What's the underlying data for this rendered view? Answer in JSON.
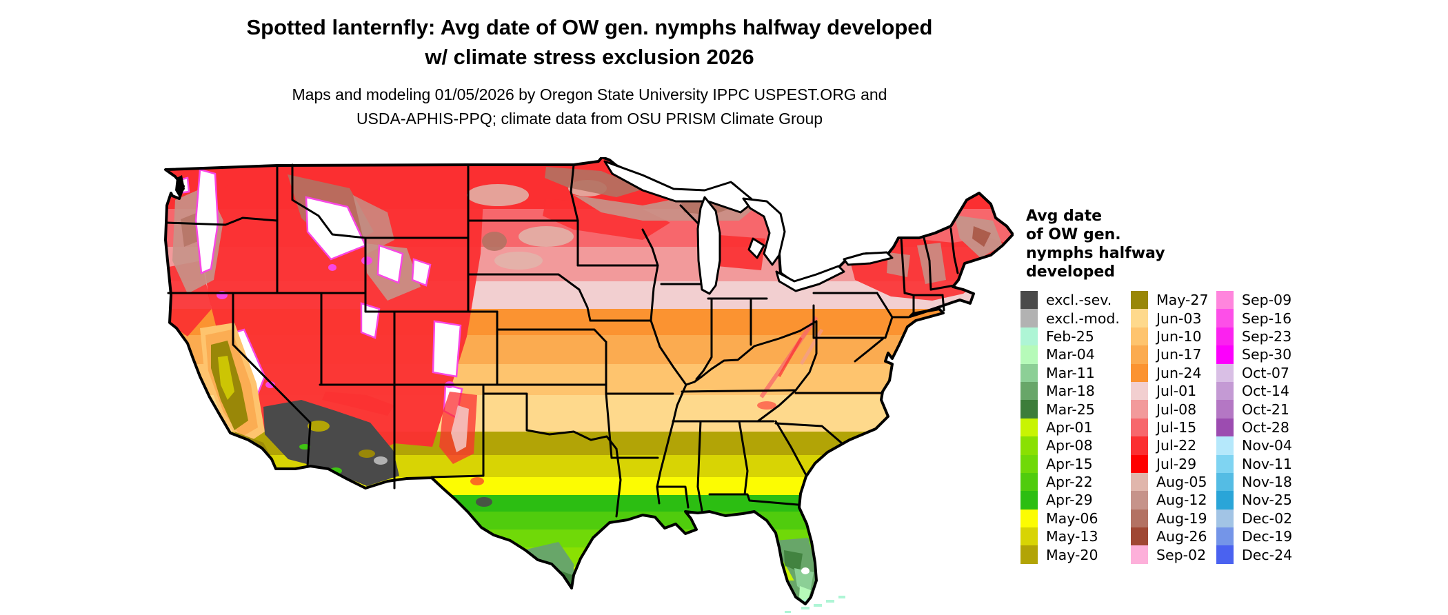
{
  "title": {
    "line1": "Spotted lanternfly: Avg date of OW gen. nymphs halfway developed",
    "line2": "w/ climate stress exclusion 2026"
  },
  "subtitle": {
    "line1": "Maps and modeling 01/05/2026 by Oregon State University IPPC USPEST.ORG and",
    "line2": "USDA-APHIS-PPQ; climate data from OSU PRISM Climate Group"
  },
  "legend": {
    "title_lines": [
      "Avg date",
      "of OW gen.",
      "nymphs halfway",
      "developed"
    ],
    "columns": [
      [
        {
          "label": "excl.-sev.",
          "color": "#4a4a4a"
        },
        {
          "label": "excl.-mod.",
          "color": "#b2b2b2"
        },
        {
          "label": "Feb-25",
          "color": "#aef5d5"
        },
        {
          "label": "Mar-04",
          "color": "#b6fab9"
        },
        {
          "label": "Mar-11",
          "color": "#8ccf96"
        },
        {
          "label": "Mar-18",
          "color": "#68a669"
        },
        {
          "label": "Mar-25",
          "color": "#3c7d3a"
        },
        {
          "label": "Apr-01",
          "color": "#c8f402"
        },
        {
          "label": "Apr-08",
          "color": "#8ae002"
        },
        {
          "label": "Apr-15",
          "color": "#70d908"
        },
        {
          "label": "Apr-22",
          "color": "#50cc0d"
        },
        {
          "label": "Apr-29",
          "color": "#2cbe12"
        },
        {
          "label": "May-06",
          "color": "#fcfc02"
        },
        {
          "label": "May-13",
          "color": "#d8d404"
        },
        {
          "label": "May-20",
          "color": "#b2a406"
        }
      ],
      [
        {
          "label": "May-27",
          "color": "#998708"
        },
        {
          "label": "Jun-03",
          "color": "#fed98c"
        },
        {
          "label": "Jun-10",
          "color": "#fec46e"
        },
        {
          "label": "Jun-17",
          "color": "#fbab50"
        },
        {
          "label": "Jun-24",
          "color": "#fb9331"
        },
        {
          "label": "Jul-01",
          "color": "#f2cfd0"
        },
        {
          "label": "Jul-08",
          "color": "#f29a9b"
        },
        {
          "label": "Jul-15",
          "color": "#f7676c"
        },
        {
          "label": "Jul-22",
          "color": "#fb2f31"
        },
        {
          "label": "Jul-29",
          "color": "#fe0000"
        },
        {
          "label": "Aug-05",
          "color": "#e0b6ac"
        },
        {
          "label": "Aug-12",
          "color": "#c6938a"
        },
        {
          "label": "Aug-19",
          "color": "#b37263"
        },
        {
          "label": "Aug-26",
          "color": "#9f4733"
        },
        {
          "label": "Sep-02",
          "color": "#fdb0da"
        }
      ],
      [
        {
          "label": "Sep-09",
          "color": "#ff85dd"
        },
        {
          "label": "Sep-16",
          "color": "#fd4fe8"
        },
        {
          "label": "Sep-23",
          "color": "#fb22ef"
        },
        {
          "label": "Sep-30",
          "color": "#fc00fc"
        },
        {
          "label": "Oct-07",
          "color": "#d9bfe5"
        },
        {
          "label": "Oct-14",
          "color": "#c49ad4"
        },
        {
          "label": "Oct-21",
          "color": "#b477c4"
        },
        {
          "label": "Oct-28",
          "color": "#9c4cb0"
        },
        {
          "label": "Nov-04",
          "color": "#b5e8fb"
        },
        {
          "label": "Nov-11",
          "color": "#7fd4f2"
        },
        {
          "label": "Nov-18",
          "color": "#54bce4"
        },
        {
          "label": "Nov-25",
          "color": "#2aa5d8"
        },
        {
          "label": "Dec-02",
          "color": "#a2c4e5"
        },
        {
          "label": "Dec-19",
          "color": "#7495e8"
        },
        {
          "label": "Dec-24",
          "color": "#4a62f0"
        }
      ]
    ]
  },
  "map": {
    "region": "Continental United States",
    "excluded_color_severe": "#4a4a4a",
    "excluded_color_moderate": "#b2b2b2",
    "no_data_color": "#ffffff",
    "boundary_color": "#000000"
  }
}
